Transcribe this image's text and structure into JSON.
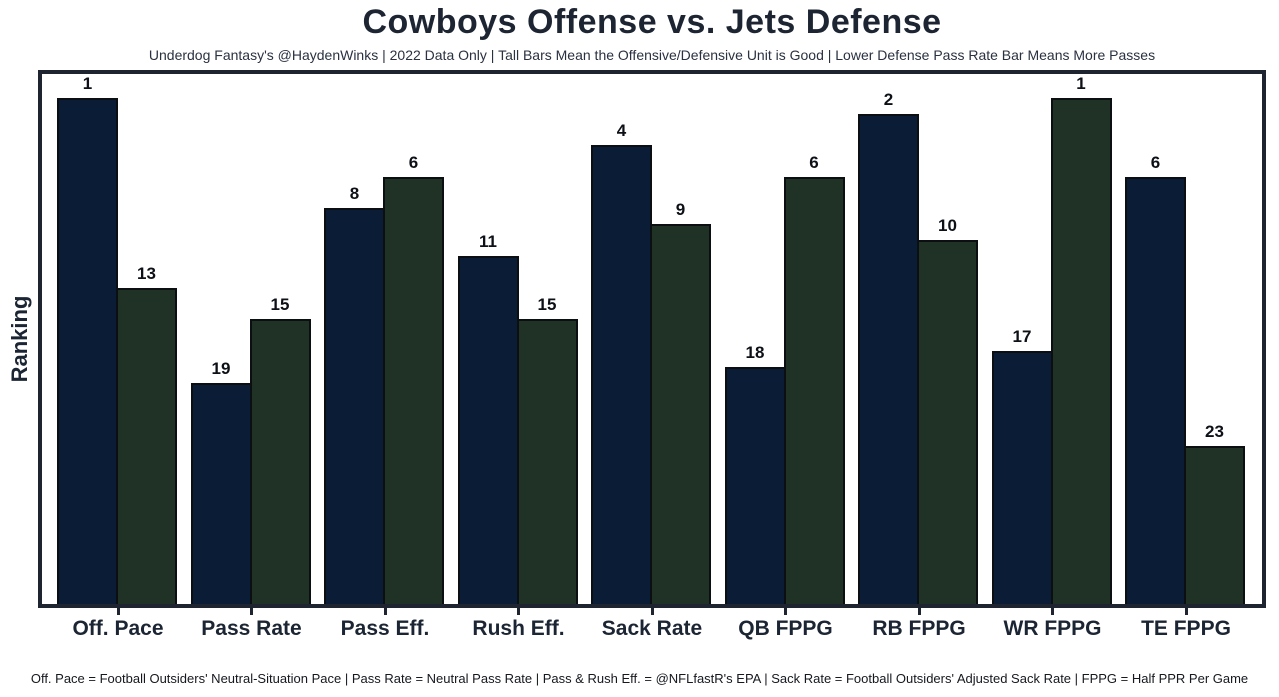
{
  "title": "Cowboys Offense vs. Jets Defense",
  "subtitle": "Underdog Fantasy's @HaydenWinks | 2022 Data Only | Tall Bars Mean the Offensive/Defensive Unit is Good | Lower Defense Pass Rate Bar Means More Passes",
  "ylabel": "Ranking",
  "footnote": "Off. Pace = Football Outsiders' Neutral-Situation Pace | Pass Rate = Neutral Pass Rate | Pass & Rush Eff. = @NFLfastR's EPA | Sack Rate = Football Outsiders' Adjusted Sack Rate | FPPG = Half PPR Per Game",
  "colors": {
    "offense_bar": "#0b1c37",
    "defense_bar": "#203226",
    "bar_outline": "#0c0f12",
    "frame_border": "#1e2430",
    "text": "#1c2533"
  },
  "chart_data": {
    "type": "bar",
    "title": "Cowboys Offense vs. Jets Defense",
    "ylabel": "Ranking",
    "xlabel": "",
    "categories": [
      "Off. Pace",
      "Pass Rate",
      "Pass Eff.",
      "Rush Eff.",
      "Sack Rate",
      "QB FPPG",
      "RB FPPG",
      "WR FPPG",
      "TE FPPG"
    ],
    "series": [
      {
        "name": "Cowboys Offense",
        "color": "#0b1c37",
        "values": [
          1,
          19,
          8,
          11,
          4,
          18,
          2,
          17,
          6
        ]
      },
      {
        "name": "Jets Defense",
        "color": "#203226",
        "values": [
          13,
          15,
          6,
          15,
          9,
          6,
          10,
          1,
          23
        ]
      }
    ],
    "value_label_above_each_bar": true,
    "bar_height_rule": "taller bar = better (lower) rank; height proportional to 33 minus rank",
    "ylim": [
      0,
      33.5
    ],
    "grid": false,
    "legend": "none"
  }
}
